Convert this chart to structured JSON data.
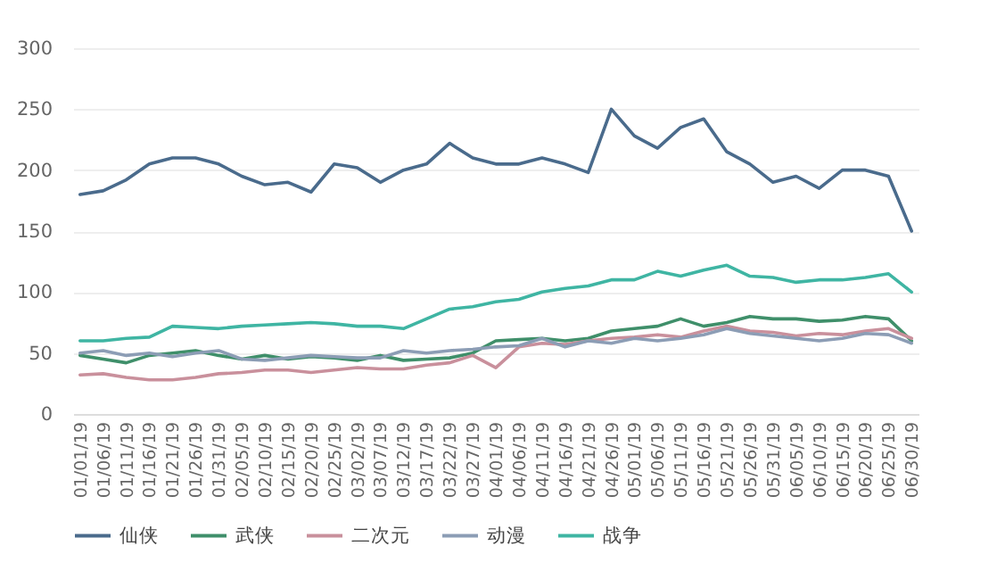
{
  "chart_data": {
    "type": "line",
    "categories": [
      "01/01/19",
      "01/06/19",
      "01/11/19",
      "01/16/19",
      "01/21/19",
      "01/26/19",
      "01/31/19",
      "02/05/19",
      "02/10/19",
      "02/15/19",
      "02/20/19",
      "02/25/19",
      "03/02/19",
      "03/07/19",
      "03/12/19",
      "03/17/19",
      "03/22/19",
      "03/27/19",
      "04/01/19",
      "04/06/19",
      "04/11/19",
      "04/16/19",
      "04/21/19",
      "04/26/19",
      "05/01/19",
      "05/06/19",
      "05/11/19",
      "05/16/19",
      "05/21/19",
      "05/26/19",
      "05/31/19",
      "06/05/19",
      "06/10/19",
      "06/15/19",
      "06/20/19",
      "06/25/19",
      "06/30/19"
    ],
    "series": [
      {
        "name": "仙侠",
        "color": "#4a6b8c",
        "values": [
          180,
          183,
          192,
          205,
          210,
          210,
          205,
          195,
          188,
          190,
          182,
          205,
          202,
          190,
          200,
          205,
          222,
          210,
          205,
          205,
          210,
          205,
          198,
          250,
          228,
          218,
          235,
          242,
          215,
          205,
          190,
          195,
          185,
          200,
          200,
          195,
          150
        ]
      },
      {
        "name": "武侠",
        "color": "#3f8f6a",
        "values": [
          48,
          45,
          42,
          48,
          50,
          52,
          48,
          45,
          48,
          45,
          47,
          46,
          44,
          48,
          44,
          45,
          46,
          50,
          60,
          61,
          62,
          60,
          62,
          68,
          70,
          72,
          78,
          72,
          75,
          80,
          78,
          78,
          76,
          77,
          80,
          78,
          60
        ]
      },
      {
        "name": "二次元",
        "color": "#c9909c",
        "values": [
          32,
          33,
          30,
          28,
          28,
          30,
          33,
          34,
          36,
          36,
          34,
          36,
          38,
          37,
          37,
          40,
          42,
          48,
          38,
          55,
          58,
          57,
          60,
          62,
          63,
          65,
          63,
          68,
          72,
          68,
          67,
          64,
          66,
          65,
          68,
          70,
          62
        ]
      },
      {
        "name": "动漫",
        "color": "#8c9db5",
        "values": [
          50,
          52,
          48,
          50,
          47,
          50,
          52,
          45,
          44,
          46,
          48,
          47,
          46,
          46,
          52,
          50,
          52,
          53,
          55,
          56,
          62,
          55,
          60,
          58,
          62,
          60,
          62,
          65,
          70,
          66,
          64,
          62,
          60,
          62,
          66,
          65,
          58
        ]
      },
      {
        "name": "战争",
        "color": "#3fb5a3",
        "values": [
          60,
          60,
          62,
          63,
          72,
          71,
          70,
          72,
          73,
          74,
          75,
          74,
          72,
          72,
          70,
          78,
          86,
          88,
          92,
          94,
          100,
          103,
          105,
          110,
          110,
          117,
          113,
          118,
          122,
          113,
          112,
          108,
          110,
          110,
          112,
          115,
          100
        ]
      }
    ],
    "ylim": [
      0,
      300
    ],
    "yticks": [
      0,
      50,
      100,
      150,
      200,
      250,
      300
    ],
    "grid": "y",
    "legend": "bottom",
    "line_style": "solid"
  }
}
